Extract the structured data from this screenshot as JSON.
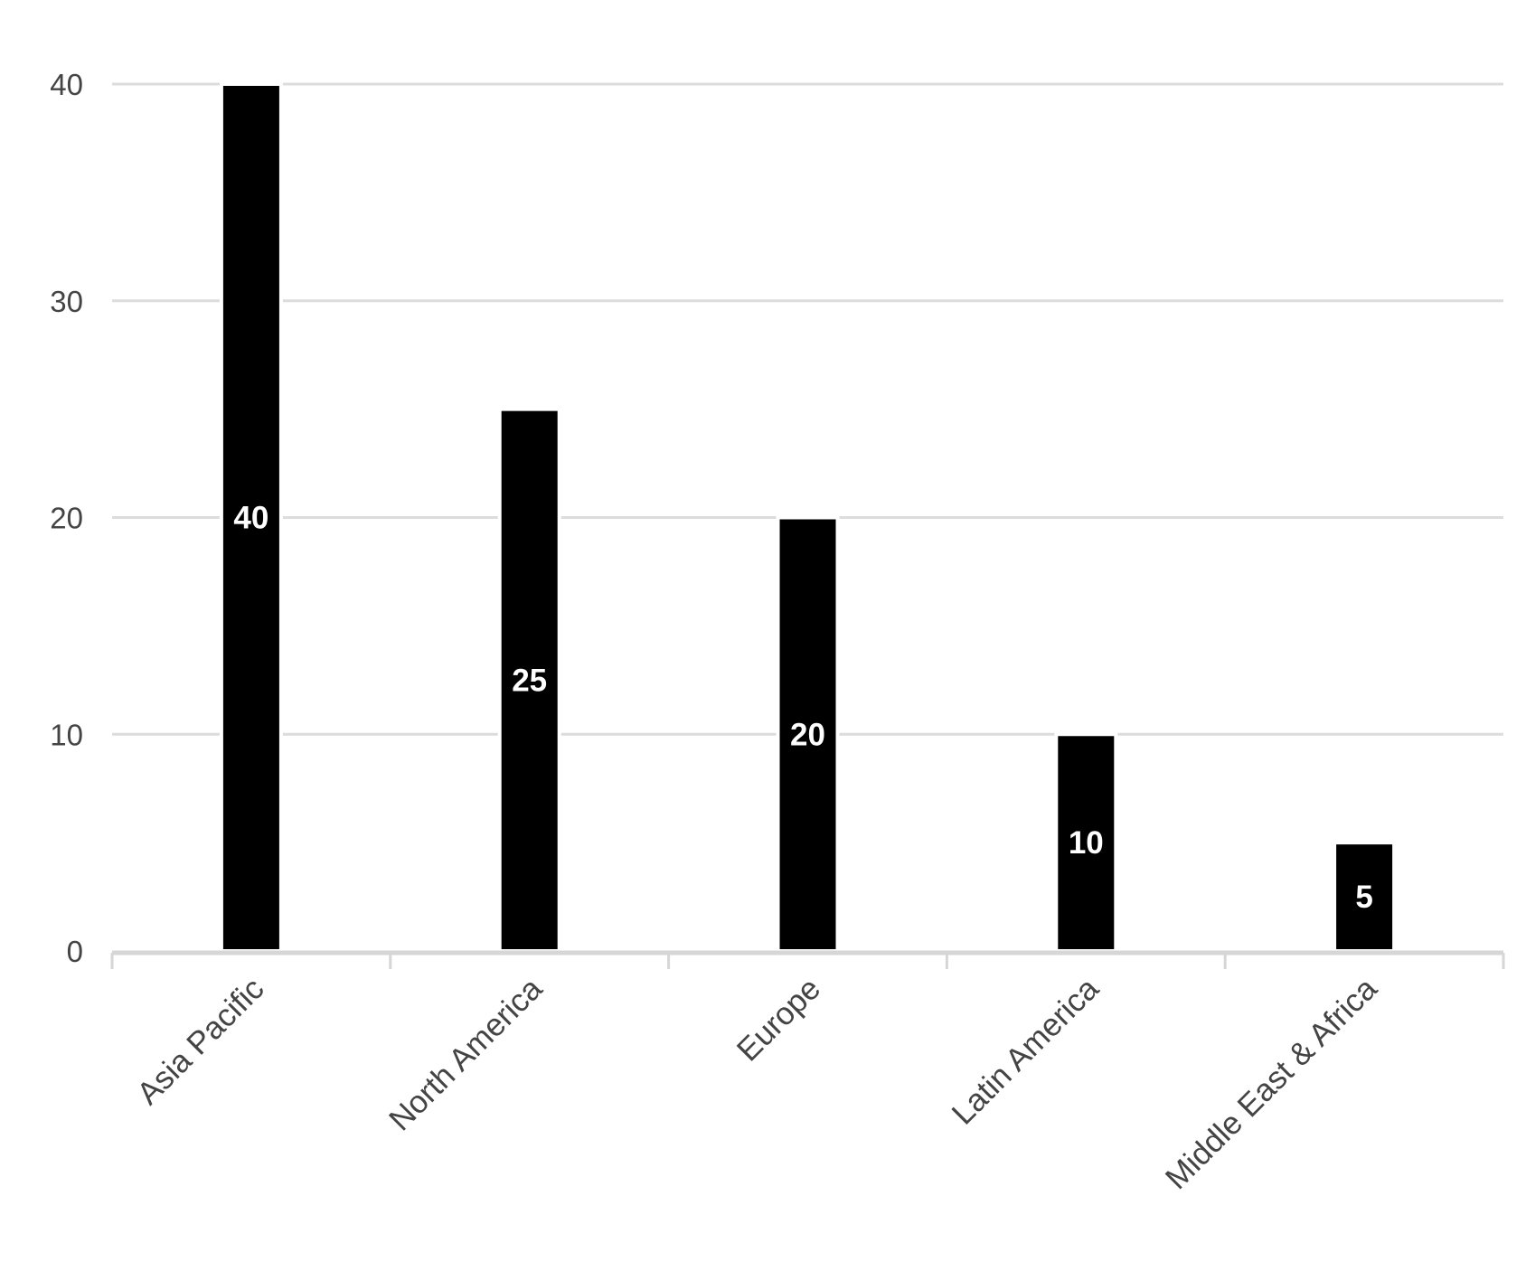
{
  "chart_data": {
    "type": "bar",
    "categories": [
      "Asia Pacific",
      "North America",
      "Europe",
      "Latin America",
      "Middle East & Africa"
    ],
    "values": [
      40,
      25,
      20,
      10,
      5
    ],
    "data_labels": [
      "40",
      "25",
      "20",
      "10",
      "5"
    ],
    "title": "",
    "xlabel": "",
    "ylabel": "",
    "ylim": [
      0,
      40
    ],
    "yticks": [
      0,
      10,
      20,
      30,
      40
    ],
    "grid": true,
    "legend": "none",
    "colors": {
      "bar": "#000000",
      "bar_label": "#ffffff",
      "grid": "#dcdcdc",
      "axis": "#d6d6d6",
      "tick_label": "#444444"
    }
  }
}
